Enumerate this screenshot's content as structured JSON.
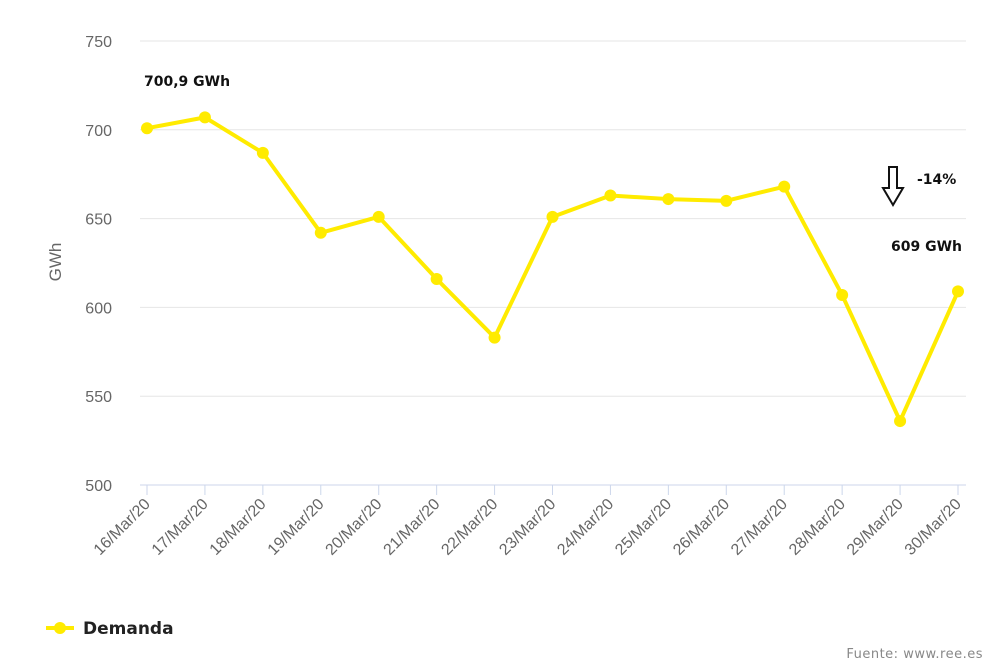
{
  "chart_data": {
    "type": "line",
    "ylabel": "GWh",
    "ylim": [
      500,
      750
    ],
    "yticks": [
      500,
      550,
      600,
      650,
      700,
      750
    ],
    "grid": true,
    "categories": [
      "16/Mar/20",
      "17/Mar/20",
      "18/Mar/20",
      "19/Mar/20",
      "20/Mar/20",
      "21/Mar/20",
      "22/Mar/20",
      "23/Mar/20",
      "24/Mar/20",
      "25/Mar/20",
      "26/Mar/20",
      "27/Mar/20",
      "28/Mar/20",
      "29/Mar/20",
      "30/Mar/20"
    ],
    "series": [
      {
        "name": "Demanda",
        "color": "#ffeb00",
        "values": [
          700.9,
          707,
          687,
          642,
          651,
          616,
          583,
          651,
          663,
          661,
          660,
          668,
          607,
          536,
          609
        ]
      }
    ],
    "annotations": {
      "first_value_label": "700,9 GWh",
      "last_value_label": "609 GWh",
      "change_label": "-14%",
      "change_icon": "down-arrow-icon"
    },
    "legend": {
      "position": "bottom-left",
      "label": "Demanda"
    },
    "source": "Fuente: www.ree.es"
  }
}
